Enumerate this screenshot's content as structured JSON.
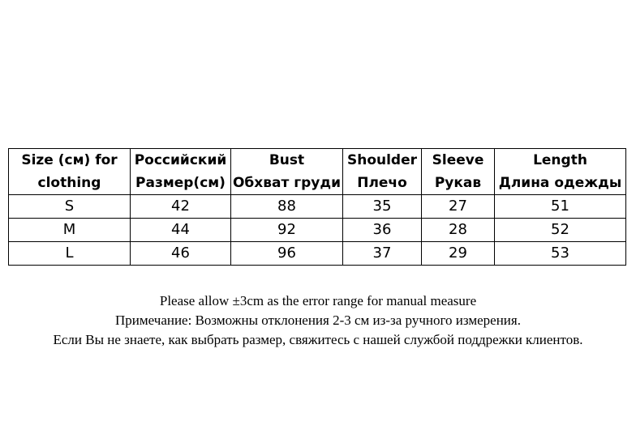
{
  "table": {
    "headers": [
      {
        "line1": "Size (см) for",
        "line2": "clothing"
      },
      {
        "line1": "Российский",
        "line2": "Размер(см)"
      },
      {
        "line1": "Bust",
        "line2": "Обхват груди"
      },
      {
        "line1": "Shoulder",
        "line2": "Плечо"
      },
      {
        "line1": "Sleeve",
        "line2": "Рукав"
      },
      {
        "line1": "Length",
        "line2": "Длина одежды"
      }
    ],
    "rows": [
      [
        "S",
        "42",
        "88",
        "35",
        "27",
        "51"
      ],
      [
        "M",
        "44",
        "92",
        "36",
        "28",
        "52"
      ],
      [
        "L",
        "46",
        "96",
        "37",
        "29",
        "53"
      ]
    ]
  },
  "notes": {
    "line1": "Please allow ±3cm as the error range for manual measure",
    "line2": "Примечание: Возможны отклонения 2-3 см из-за ручного измерения.",
    "line3": "Если Вы не знаете, как выбрать размер, свяжитесь с нашей службой поддрежки клиентов."
  }
}
